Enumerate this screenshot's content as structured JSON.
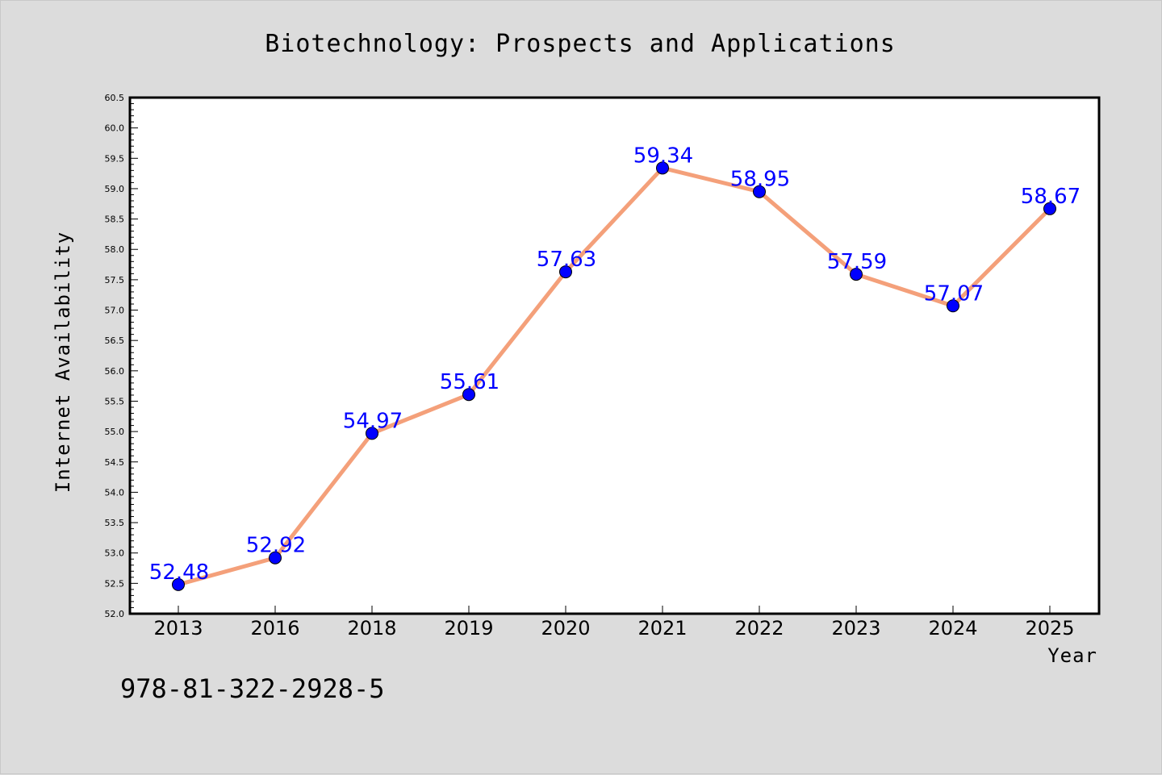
{
  "chart_data": {
    "type": "line",
    "title": "Biotechnology: Prospects and Applications",
    "xlabel": "Year",
    "ylabel": "Internet Availability",
    "categories": [
      "2013",
      "2016",
      "2018",
      "2019",
      "2020",
      "2021",
      "2022",
      "2023",
      "2024",
      "2025"
    ],
    "series": [
      {
        "values": [
          52.48,
          52.92,
          54.97,
          55.61,
          57.63,
          59.34,
          58.95,
          57.59,
          57.07,
          58.67
        ],
        "labels": [
          "52.48",
          "52.92",
          "54.97",
          "55.61",
          "57.63",
          "59.34",
          "58.95",
          "57.59",
          "57.07",
          "58.67"
        ]
      }
    ],
    "ylim": [
      52.0,
      60.5
    ],
    "yticks": [
      "52.0",
      "52.5",
      "53.0",
      "53.5",
      "54.0",
      "54.5",
      "55.0",
      "55.5",
      "56.0",
      "56.5",
      "57.0",
      "57.5",
      "58.0",
      "58.5",
      "59.0",
      "59.5",
      "60.0",
      "60.5"
    ],
    "grid": false,
    "line_color": "#f4a07a",
    "marker_color": "#0000ff",
    "label_color": "#0000ff"
  },
  "annotation": {
    "isbn": "978-81-322-2928-5"
  }
}
